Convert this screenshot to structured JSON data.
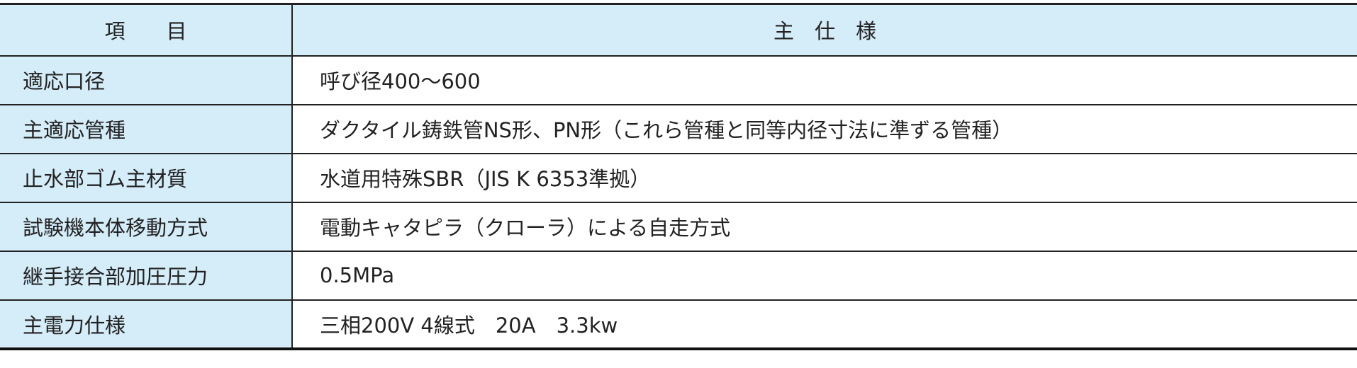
{
  "table": {
    "headers": [
      "項　　目",
      "主　仕　様"
    ],
    "rows": [
      {
        "item": "適応口径",
        "spec": "呼び径400〜600"
      },
      {
        "item": "主適応管種",
        "spec": "ダクタイル鋳鉄管NS形、PN形（これら管種と同等内径寸法に準ずる管種）"
      },
      {
        "item": "止水部ゴム主材質",
        "spec": "水道用特殊SBR（JIS K 6353準拠）"
      },
      {
        "item": "試験機本体移動方式",
        "spec": "電動キャタピラ（クローラ）による自走方式"
      },
      {
        "item": "継手接合部加圧圧力",
        "spec": "0.5MPa"
      },
      {
        "item": "主電力仕様",
        "spec": "三相200V 4線式　20A　3.3kw"
      }
    ]
  },
  "colors": {
    "header_bg": "#d5ecf9",
    "border": "#222222"
  }
}
